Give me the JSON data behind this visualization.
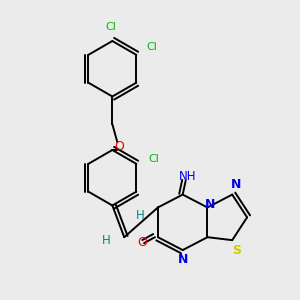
{
  "background_color": "#ebebeb",
  "figsize": [
    3.0,
    3.0
  ],
  "dpi": 100,
  "C": "#000000",
  "N": "#0000ee",
  "O": "#ee0000",
  "S": "#cccc00",
  "Cl": "#00bb00",
  "H": "#008888",
  "bond_color": "#000000",
  "bond_lw": 1.4,
  "dbo": 0.012
}
